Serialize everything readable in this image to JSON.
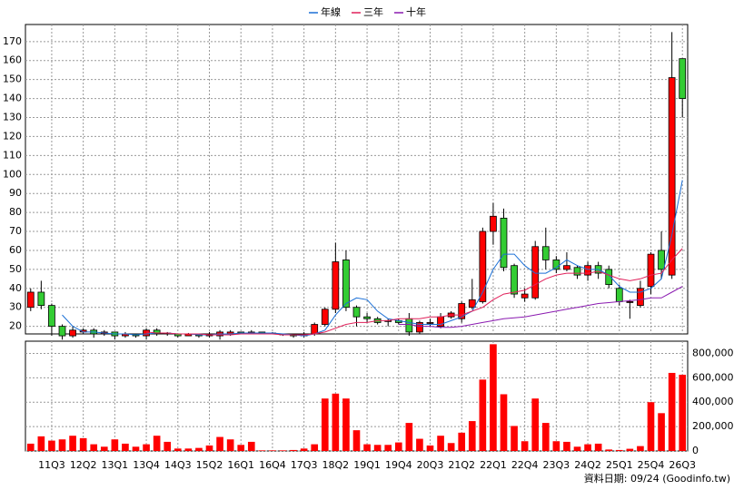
{
  "chart_data": {
    "type": "candlestick",
    "categories": [
      null,
      null,
      "11Q3",
      null,
      null,
      "12Q2",
      null,
      null,
      "13Q1",
      null,
      null,
      "13Q4",
      null,
      null,
      "14Q3",
      null,
      null,
      "15Q2",
      null,
      null,
      "16Q1",
      null,
      null,
      "16Q4",
      null,
      null,
      "17Q3",
      null,
      null,
      "18Q2",
      null,
      null,
      "19Q1",
      null,
      null,
      "19Q4",
      null,
      null,
      "20Q3",
      null,
      null,
      "21Q2",
      null,
      null,
      "22Q1",
      null,
      null,
      "22Q4",
      null,
      null,
      "23Q3",
      null,
      null,
      "24Q2",
      null,
      null,
      "25Q1",
      null,
      null,
      "25Q4",
      null,
      null,
      "26Q3"
    ],
    "open": [
      30,
      38,
      31,
      20,
      15,
      17,
      18,
      16,
      17,
      15,
      16,
      15,
      18,
      16,
      16,
      15,
      15.5,
      15,
      15,
      16,
      17,
      16.5,
      17,
      16.5,
      16,
      15.5,
      15,
      16,
      21,
      29,
      55,
      30,
      25,
      24,
      23,
      23,
      24,
      17,
      22,
      20,
      25,
      24,
      30,
      33,
      70,
      77,
      52,
      35,
      35,
      62,
      55,
      50,
      51,
      47,
      52,
      50,
      40,
      33,
      31,
      41,
      60,
      47,
      161
    ],
    "high": [
      40,
      44,
      32,
      21,
      20,
      19,
      19,
      18,
      17,
      17,
      16,
      19,
      19,
      17,
      16,
      16.5,
      16,
      17,
      18,
      18,
      17,
      18,
      17,
      17,
      16,
      16,
      17,
      22,
      30,
      64,
      60,
      31,
      27,
      25,
      24,
      24,
      27,
      23,
      24,
      27,
      28,
      33,
      45,
      72,
      85,
      82,
      53,
      40,
      65,
      72,
      57,
      59,
      52,
      54,
      54,
      52,
      42,
      34,
      44,
      59,
      70,
      175,
      161
    ],
    "low": [
      28,
      29,
      15,
      13,
      14,
      16,
      14,
      15,
      13,
      14,
      14,
      13,
      15,
      15,
      14,
      15,
      14,
      14,
      13,
      15,
      16,
      16,
      16,
      16,
      15,
      14,
      14,
      15,
      20,
      27,
      28,
      20,
      22,
      21,
      20,
      21,
      15,
      16,
      20,
      19,
      24,
      22,
      29,
      32,
      63,
      49,
      35,
      33,
      34,
      50,
      48,
      49,
      45,
      44,
      45,
      40,
      31,
      24,
      30,
      37,
      45,
      45,
      130
    ],
    "close": [
      38,
      31,
      20,
      15,
      18,
      18,
      16,
      17,
      15,
      16,
      15,
      18,
      16,
      16.5,
      15,
      16,
      15,
      16,
      17,
      17,
      16.5,
      17,
      16.5,
      16,
      15.5,
      15,
      16,
      21,
      29,
      54,
      30,
      25,
      24,
      22,
      23,
      22,
      17,
      22,
      22,
      25,
      27,
      32,
      34,
      70,
      78,
      51,
      37,
      37,
      62,
      55,
      50,
      52,
      47,
      52,
      48,
      42,
      33,
      33,
      40,
      58,
      50,
      151,
      140
    ],
    "up_color": "#ff0000",
    "down_color": "#33cc33",
    "ylim": [
      16,
      179
    ],
    "yticks": [
      20,
      30,
      40,
      50,
      60,
      70,
      80,
      90,
      100,
      110,
      120,
      130,
      140,
      150,
      160,
      170
    ],
    "grid": true,
    "legend": "top",
    "lines": [
      {
        "name": "年線",
        "color": "#1a6fd6",
        "values": [
          null,
          null,
          null,
          26,
          20,
          17,
          17,
          16.5,
          16,
          16,
          15.5,
          16,
          16.5,
          16.5,
          16,
          16,
          15.5,
          15.5,
          16,
          16,
          16.5,
          16.5,
          16.5,
          16.5,
          16,
          15.5,
          15,
          16,
          18,
          26,
          32,
          35,
          34,
          28,
          24,
          23,
          22,
          21,
          21,
          21,
          23,
          25,
          28,
          38,
          50,
          58,
          58,
          52,
          48,
          48,
          51,
          55,
          52,
          50,
          50,
          47,
          41,
          38,
          38,
          40,
          45,
          68,
          97
        ]
      },
      {
        "name": "三年",
        "color": "#e0205a",
        "values": [
          null,
          null,
          null,
          null,
          null,
          null,
          null,
          null,
          null,
          null,
          null,
          17,
          16.5,
          16.5,
          16,
          16,
          16,
          15.5,
          15.5,
          15.5,
          16,
          16,
          16,
          16,
          15.5,
          15.5,
          15.5,
          16,
          17,
          19,
          21,
          22,
          22,
          23,
          23,
          24,
          24,
          24,
          25,
          25,
          26,
          26,
          28,
          30,
          34,
          37,
          38,
          39,
          42,
          45,
          47,
          48,
          48,
          48,
          49,
          47,
          45,
          44,
          45,
          47,
          48,
          55,
          61
        ]
      },
      {
        "name": "十年",
        "color": "#8a1ab0",
        "values": [
          null,
          null,
          null,
          null,
          null,
          null,
          null,
          null,
          null,
          null,
          null,
          null,
          null,
          null,
          null,
          null,
          null,
          null,
          null,
          null,
          null,
          null,
          null,
          null,
          null,
          null,
          null,
          null,
          null,
          null,
          null,
          null,
          null,
          null,
          null,
          21,
          21,
          20,
          20,
          19.5,
          19.5,
          20,
          21,
          22,
          23,
          24,
          24.5,
          25,
          26,
          27,
          28,
          29,
          30,
          31,
          32,
          32.5,
          33,
          33.5,
          34,
          35,
          35,
          38,
          41
        ]
      }
    ],
    "volume": {
      "type": "bar",
      "color": "#ff0000",
      "values": [
        60000,
        120000,
        85000,
        95000,
        125000,
        105000,
        55000,
        35000,
        95000,
        60000,
        35000,
        55000,
        125000,
        75000,
        20000,
        20000,
        25000,
        45000,
        115000,
        95000,
        50000,
        75000,
        5000,
        5000,
        5000,
        8000,
        20000,
        55000,
        430000,
        470000,
        430000,
        170000,
        55000,
        50000,
        50000,
        70000,
        230000,
        100000,
        45000,
        125000,
        65000,
        150000,
        245000,
        585000,
        875000,
        465000,
        205000,
        80000,
        430000,
        230000,
        80000,
        75000,
        35000,
        55000,
        60000,
        12000,
        8000,
        18000,
        40000,
        400000,
        310000,
        640000,
        625000
      ],
      "ylim": [
        0,
        900000
      ],
      "yticks": [
        0,
        {
          "value": 200000,
          "label": "200,000"
        },
        {
          "value": 400000,
          "label": "400,000"
        },
        {
          "value": 600000,
          "label": "600,000"
        },
        {
          "value": 800000,
          "label": "800,000"
        }
      ]
    },
    "footer": "資料日期: 09/24 (Goodinfo.tw)"
  }
}
